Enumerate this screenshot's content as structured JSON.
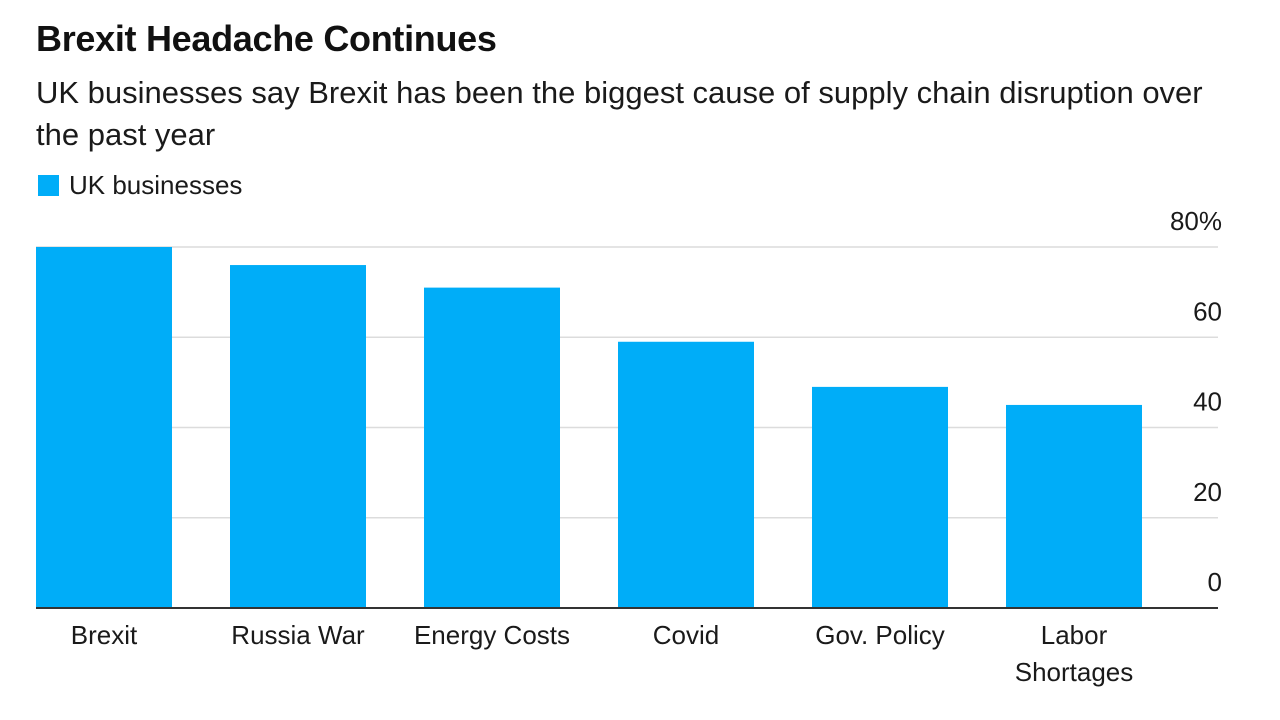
{
  "chart_data": {
    "type": "bar",
    "title": "Brexit Headache Continues",
    "subtitle": "UK businesses say Brexit has been the biggest cause of supply chain disruption over the past year",
    "legend_placement": "top-left",
    "series": [
      {
        "name": "UK businesses",
        "values": [
          80,
          76,
          71,
          59,
          49,
          45
        ]
      }
    ],
    "categories": [
      [
        "Brexit"
      ],
      [
        "Russia War"
      ],
      [
        "Energy Costs"
      ],
      [
        "Covid"
      ],
      [
        "Gov. Policy"
      ],
      [
        "Labor",
        "Shortages"
      ]
    ],
    "yticks": [
      {
        "value": 0,
        "label": "0"
      },
      {
        "value": 20,
        "label": "20"
      },
      {
        "value": 40,
        "label": "40"
      },
      {
        "value": 60,
        "label": "60"
      },
      {
        "value": 80,
        "label": "80%"
      }
    ],
    "ylim": [
      0,
      80
    ],
    "y_axis_side": "right",
    "grid": true,
    "xlabel": "",
    "ylabel": "",
    "colors": {
      "bar": "#00adf8",
      "grid": "#dcdcdc",
      "baseline": "#333333"
    }
  }
}
